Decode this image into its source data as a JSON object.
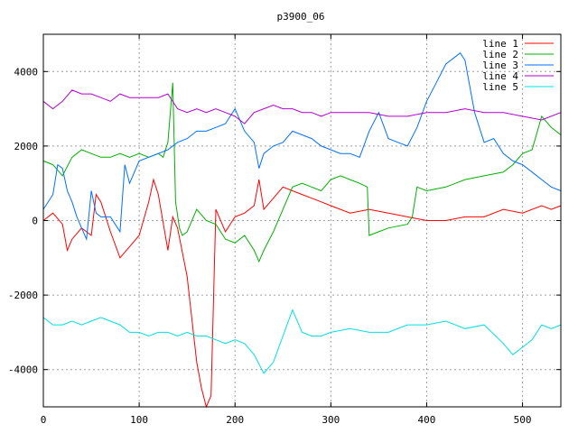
{
  "chart_data": {
    "type": "line",
    "title": "p3900_06",
    "xlabel": "",
    "ylabel": "",
    "xlim": [
      0,
      540
    ],
    "ylim": [
      -5000,
      5000
    ],
    "xticks": [
      0,
      100,
      200,
      300,
      400,
      500
    ],
    "yticks": [
      -4000,
      -2000,
      0,
      2000,
      4000
    ],
    "grid": true,
    "legend_position": "top-right",
    "series": [
      {
        "name": "line 1",
        "color": "#ff0000",
        "x": [
          0,
          10,
          20,
          25,
          30,
          40,
          50,
          55,
          60,
          70,
          80,
          90,
          100,
          110,
          115,
          120,
          130,
          135,
          140,
          150,
          160,
          165,
          170,
          175,
          180,
          190,
          200,
          210,
          220,
          225,
          230,
          240,
          250,
          260,
          270,
          280,
          290,
          300,
          320,
          340,
          360,
          380,
          400,
          420,
          440,
          460,
          480,
          500,
          520,
          530,
          540
        ],
        "y": [
          0,
          200,
          -100,
          -800,
          -500,
          -200,
          -400,
          700,
          500,
          -300,
          -1000,
          -700,
          -400,
          500,
          1100,
          700,
          -800,
          100,
          -200,
          -1500,
          -3800,
          -4500,
          -5000,
          -4700,
          300,
          -300,
          100,
          200,
          400,
          1100,
          300,
          600,
          900,
          800,
          700,
          600,
          500,
          400,
          200,
          300,
          200,
          100,
          0,
          0,
          100,
          100,
          300,
          200,
          400,
          300,
          400
        ]
      },
      {
        "name": "line 2",
        "color": "#00b000",
        "x": [
          0,
          10,
          20,
          30,
          40,
          50,
          60,
          70,
          80,
          90,
          100,
          110,
          120,
          125,
          130,
          135,
          138,
          142,
          145,
          150,
          160,
          170,
          180,
          190,
          200,
          210,
          220,
          225,
          230,
          240,
          250,
          260,
          270,
          280,
          290,
          300,
          310,
          320,
          330,
          338,
          340,
          350,
          360,
          380,
          385,
          390,
          400,
          420,
          440,
          460,
          480,
          490,
          500,
          510,
          520,
          530,
          540
        ],
        "y": [
          1600,
          1500,
          1200,
          1700,
          1900,
          1800,
          1700,
          1700,
          1800,
          1700,
          1800,
          1700,
          1800,
          1700,
          2100,
          3700,
          500,
          -200,
          -400,
          -300,
          300,
          0,
          -100,
          -500,
          -600,
          -400,
          -800,
          -1100,
          -800,
          -300,
          300,
          900,
          1000,
          900,
          800,
          1100,
          1200,
          1100,
          1000,
          900,
          -400,
          -300,
          -200,
          -100,
          100,
          900,
          800,
          900,
          1100,
          1200,
          1300,
          1500,
          1800,
          1900,
          2800,
          2500,
          2300
        ]
      },
      {
        "name": "line 3",
        "color": "#0070ff",
        "x": [
          0,
          10,
          15,
          20,
          25,
          30,
          35,
          40,
          45,
          50,
          55,
          60,
          70,
          80,
          85,
          90,
          100,
          110,
          120,
          130,
          140,
          150,
          160,
          170,
          180,
          190,
          200,
          210,
          220,
          225,
          230,
          240,
          250,
          260,
          270,
          280,
          290,
          300,
          310,
          320,
          330,
          340,
          350,
          360,
          370,
          380,
          390,
          400,
          410,
          420,
          430,
          435,
          440,
          450,
          460,
          470,
          480,
          490,
          500,
          510,
          520,
          530,
          540
        ],
        "y": [
          300,
          700,
          1500,
          1400,
          800,
          500,
          100,
          -200,
          -500,
          800,
          200,
          100,
          100,
          -300,
          1500,
          1000,
          1600,
          1700,
          1800,
          1900,
          2100,
          2200,
          2400,
          2400,
          2500,
          2600,
          3000,
          2400,
          2100,
          1400,
          1800,
          2000,
          2100,
          2400,
          2300,
          2200,
          2000,
          1900,
          1800,
          1800,
          1700,
          2400,
          2900,
          2200,
          2100,
          2000,
          2500,
          3200,
          3700,
          4200,
          4400,
          4500,
          4300,
          2900,
          2100,
          2200,
          1800,
          1600,
          1500,
          1300,
          1100,
          900,
          800
        ]
      },
      {
        "name": "line 4",
        "color": "#b000d0",
        "x": [
          0,
          10,
          20,
          30,
          40,
          50,
          60,
          70,
          80,
          90,
          100,
          110,
          120,
          130,
          140,
          150,
          160,
          170,
          180,
          190,
          200,
          210,
          220,
          230,
          240,
          250,
          260,
          270,
          280,
          290,
          300,
          320,
          340,
          360,
          380,
          400,
          420,
          440,
          460,
          480,
          500,
          520,
          540
        ],
        "y": [
          3200,
          3000,
          3200,
          3500,
          3400,
          3400,
          3300,
          3200,
          3400,
          3300,
          3300,
          3300,
          3300,
          3400,
          3000,
          2900,
          3000,
          2900,
          3000,
          2900,
          2800,
          2600,
          2900,
          3000,
          3100,
          3000,
          3000,
          2900,
          2900,
          2800,
          2900,
          2900,
          2900,
          2800,
          2800,
          2900,
          2900,
          3000,
          2900,
          2900,
          2800,
          2700,
          2900
        ]
      },
      {
        "name": "line 5",
        "color": "#00e0e0",
        "x": [
          0,
          10,
          20,
          30,
          40,
          50,
          60,
          70,
          80,
          90,
          100,
          110,
          120,
          130,
          140,
          150,
          160,
          170,
          180,
          190,
          200,
          210,
          220,
          230,
          240,
          250,
          260,
          270,
          280,
          290,
          300,
          320,
          340,
          360,
          380,
          400,
          420,
          440,
          460,
          480,
          490,
          500,
          510,
          520,
          530,
          540
        ],
        "y": [
          -2600,
          -2800,
          -2800,
          -2700,
          -2800,
          -2700,
          -2600,
          -2700,
          -2800,
          -3000,
          -3000,
          -3100,
          -3000,
          -3000,
          -3100,
          -3000,
          -3100,
          -3100,
          -3200,
          -3300,
          -3200,
          -3300,
          -3600,
          -4100,
          -3800,
          -3100,
          -2400,
          -3000,
          -3100,
          -3100,
          -3000,
          -2900,
          -3000,
          -3000,
          -2800,
          -2800,
          -2700,
          -2900,
          -2800,
          -3300,
          -3600,
          -3400,
          -3200,
          -2800,
          -2900,
          -2800
        ]
      }
    ]
  }
}
